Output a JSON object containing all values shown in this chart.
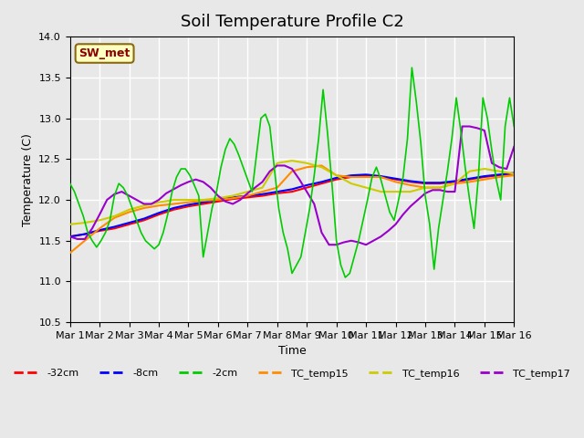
{
  "title": "Soil Temperature Profile C2",
  "xlabel": "Time",
  "ylabel": "Temperature (C)",
  "ylim": [
    10.5,
    14.0
  ],
  "xlim": [
    0,
    15
  ],
  "xtick_labels": [
    "Mar 1",
    "Mar 2",
    "Mar 3",
    "Mar 4",
    "Mar 5",
    "Mar 6",
    "Mar 7",
    "Mar 8",
    "Mar 9",
    "Mar 10",
    "Mar 11",
    "Mar 12",
    "Mar 13",
    "Mar 14",
    "Mar 15",
    "Mar 16"
  ],
  "ytick_vals": [
    10.5,
    11.0,
    11.5,
    12.0,
    12.5,
    13.0,
    13.5,
    14.0
  ],
  "annotation": "SW_met",
  "annotation_color": "#8B0000",
  "annotation_bg": "#FFFFC0",
  "annotation_border": "#8B6914",
  "series": {
    "neg32cm": {
      "color": "#FF0000",
      "label": "-32cm",
      "x": [
        0,
        0.5,
        1.0,
        1.5,
        2.0,
        2.5,
        3.0,
        3.5,
        4.0,
        4.5,
        5.0,
        5.5,
        6.0,
        6.5,
        7.0,
        7.5,
        8.0,
        8.5,
        9.0,
        9.5,
        10.0,
        10.5,
        11.0,
        11.5,
        12.0,
        12.5,
        13.0,
        13.5,
        14.0,
        14.5,
        15.0
      ],
      "y": [
        11.55,
        11.58,
        11.62,
        11.65,
        11.7,
        11.75,
        11.82,
        11.88,
        11.92,
        11.95,
        11.98,
        12.01,
        12.03,
        12.05,
        12.08,
        12.1,
        12.15,
        12.2,
        12.25,
        12.28,
        12.3,
        12.28,
        12.25,
        12.22,
        12.2,
        12.2,
        12.22,
        12.25,
        12.28,
        12.3,
        12.32
      ]
    },
    "neg8cm": {
      "color": "#0000FF",
      "label": "-8cm",
      "x": [
        0,
        0.5,
        1.0,
        1.5,
        2.0,
        2.5,
        3.0,
        3.5,
        4.0,
        4.5,
        5.0,
        5.5,
        6.0,
        6.5,
        7.0,
        7.5,
        8.0,
        8.5,
        9.0,
        9.5,
        10.0,
        10.5,
        11.0,
        11.5,
        12.0,
        12.5,
        13.0,
        13.5,
        14.0,
        14.5,
        15.0
      ],
      "y": [
        11.55,
        11.58,
        11.63,
        11.67,
        11.72,
        11.77,
        11.84,
        11.9,
        11.94,
        11.97,
        12.0,
        12.03,
        12.05,
        12.07,
        12.1,
        12.13,
        12.18,
        12.22,
        12.27,
        12.3,
        12.31,
        12.29,
        12.26,
        12.23,
        12.21,
        12.21,
        12.23,
        12.26,
        12.29,
        12.31,
        12.33
      ]
    },
    "neg2cm": {
      "color": "#00CC00",
      "label": "-2cm",
      "x": [
        0,
        0.15,
        0.3,
        0.45,
        0.6,
        0.75,
        0.9,
        1.05,
        1.2,
        1.35,
        1.5,
        1.65,
        1.8,
        1.95,
        2.1,
        2.25,
        2.4,
        2.55,
        2.7,
        2.85,
        3.0,
        3.15,
        3.3,
        3.45,
        3.6,
        3.75,
        3.9,
        4.05,
        4.2,
        4.35,
        4.5,
        4.65,
        4.8,
        4.95,
        5.1,
        5.25,
        5.4,
        5.55,
        5.7,
        5.85,
        6.0,
        6.15,
        6.3,
        6.45,
        6.6,
        6.75,
        6.9,
        7.05,
        7.2,
        7.35,
        7.5,
        7.65,
        7.8,
        7.95,
        8.1,
        8.25,
        8.4,
        8.55,
        8.7,
        8.85,
        9.0,
        9.15,
        9.3,
        9.45,
        9.6,
        9.75,
        9.9,
        10.05,
        10.2,
        10.35,
        10.5,
        10.65,
        10.8,
        10.95,
        11.1,
        11.25,
        11.4,
        11.55,
        11.7,
        11.85,
        12.0,
        12.15,
        12.3,
        12.45,
        12.6,
        12.75,
        12.9,
        13.05,
        13.2,
        13.35,
        13.5,
        13.65,
        13.8,
        13.95,
        14.1,
        14.25,
        14.4,
        14.55,
        14.7,
        14.85,
        15.0
      ],
      "y": [
        12.2,
        12.1,
        11.95,
        11.8,
        11.6,
        11.5,
        11.42,
        11.5,
        11.6,
        11.75,
        12.05,
        12.2,
        12.15,
        12.05,
        11.9,
        11.75,
        11.6,
        11.5,
        11.45,
        11.4,
        11.45,
        11.6,
        11.82,
        12.1,
        12.28,
        12.38,
        12.38,
        12.3,
        12.18,
        12.05,
        11.3,
        11.6,
        11.9,
        12.1,
        12.4,
        12.62,
        12.75,
        12.68,
        12.55,
        12.4,
        12.25,
        12.1,
        12.55,
        13.0,
        13.05,
        12.9,
        12.4,
        11.9,
        11.6,
        11.4,
        11.1,
        11.2,
        11.3,
        11.6,
        11.9,
        12.3,
        12.75,
        13.35,
        12.82,
        12.2,
        11.5,
        11.2,
        11.05,
        11.1,
        11.3,
        11.5,
        11.75,
        12.0,
        12.27,
        12.4,
        12.25,
        12.05,
        11.85,
        11.75,
        12.0,
        12.27,
        12.75,
        13.62,
        13.2,
        12.7,
        12.05,
        11.7,
        11.15,
        11.65,
        12.0,
        12.35,
        12.75,
        13.25,
        12.85,
        12.4,
        12.0,
        11.65,
        12.3,
        13.25,
        13.0,
        12.6,
        12.25,
        12.0,
        12.9,
        13.25,
        12.9
      ]
    },
    "TC_temp15": {
      "color": "#FF8C00",
      "label": "TC_temp15",
      "x": [
        0,
        0.5,
        1.0,
        1.5,
        2.0,
        2.5,
        3.0,
        3.5,
        4.0,
        4.5,
        5.0,
        5.5,
        6.0,
        6.5,
        7.0,
        7.5,
        8.0,
        8.5,
        9.0,
        9.5,
        10.0,
        10.5,
        11.0,
        11.5,
        12.0,
        12.5,
        13.0,
        13.5,
        14.0,
        14.5,
        15.0
      ],
      "y": [
        11.35,
        11.5,
        11.65,
        11.78,
        11.85,
        11.9,
        11.93,
        11.95,
        11.97,
        11.99,
        12.0,
        12.02,
        12.05,
        12.1,
        12.15,
        12.35,
        12.4,
        12.42,
        12.3,
        12.28,
        12.28,
        12.28,
        12.22,
        12.18,
        12.15,
        12.15,
        12.2,
        12.22,
        12.25,
        12.28,
        12.3
      ]
    },
    "TC_temp16": {
      "color": "#CCCC00",
      "label": "TC_temp16",
      "x": [
        0,
        0.5,
        1.0,
        1.5,
        2.0,
        2.5,
        3.0,
        3.5,
        4.0,
        4.5,
        5.0,
        5.5,
        6.0,
        6.5,
        7.0,
        7.5,
        8.0,
        8.5,
        9.0,
        9.5,
        10.0,
        10.5,
        11.0,
        11.5,
        12.0,
        12.5,
        13.0,
        13.5,
        14.0,
        14.5,
        15.0
      ],
      "y": [
        11.7,
        11.72,
        11.75,
        11.8,
        11.88,
        11.93,
        11.97,
        12.0,
        12.0,
        12.0,
        12.02,
        12.05,
        12.1,
        12.15,
        12.45,
        12.48,
        12.45,
        12.4,
        12.3,
        12.2,
        12.15,
        12.1,
        12.1,
        12.1,
        12.15,
        12.15,
        12.2,
        12.35,
        12.38,
        12.35,
        12.32
      ]
    },
    "TC_temp17": {
      "color": "#9900CC",
      "label": "TC_temp17",
      "x": [
        0,
        0.25,
        0.5,
        0.75,
        1.0,
        1.25,
        1.5,
        1.75,
        2.0,
        2.25,
        2.5,
        2.75,
        3.0,
        3.25,
        3.5,
        3.75,
        4.0,
        4.25,
        4.5,
        4.75,
        5.0,
        5.25,
        5.5,
        5.75,
        6.0,
        6.25,
        6.5,
        6.75,
        7.0,
        7.25,
        7.5,
        7.75,
        8.0,
        8.25,
        8.5,
        8.75,
        9.0,
        9.25,
        9.5,
        9.75,
        10.0,
        10.25,
        10.5,
        10.75,
        11.0,
        11.25,
        11.5,
        11.75,
        12.0,
        12.25,
        12.5,
        12.75,
        13.0,
        13.25,
        13.5,
        13.75,
        14.0,
        14.25,
        14.5,
        14.75,
        15.0
      ],
      "y": [
        11.55,
        11.52,
        11.52,
        11.65,
        11.82,
        12.0,
        12.07,
        12.1,
        12.05,
        12.0,
        11.95,
        11.95,
        12.0,
        12.08,
        12.13,
        12.18,
        12.22,
        12.25,
        12.22,
        12.15,
        12.05,
        11.98,
        11.95,
        12.0,
        12.08,
        12.15,
        12.22,
        12.35,
        12.42,
        12.42,
        12.38,
        12.25,
        12.1,
        11.95,
        11.6,
        11.45,
        11.45,
        11.48,
        11.5,
        11.48,
        11.45,
        11.5,
        11.55,
        11.62,
        11.7,
        11.82,
        11.92,
        12.0,
        12.08,
        12.12,
        12.12,
        12.1,
        12.1,
        12.9,
        12.9,
        12.88,
        12.85,
        12.45,
        12.4,
        12.38,
        12.65
      ]
    }
  },
  "background_color": "#E8E8E8",
  "plot_bg_color": "#E8E8E8",
  "grid_color": "white",
  "title_fontsize": 13,
  "axis_fontsize": 9,
  "tick_fontsize": 8
}
